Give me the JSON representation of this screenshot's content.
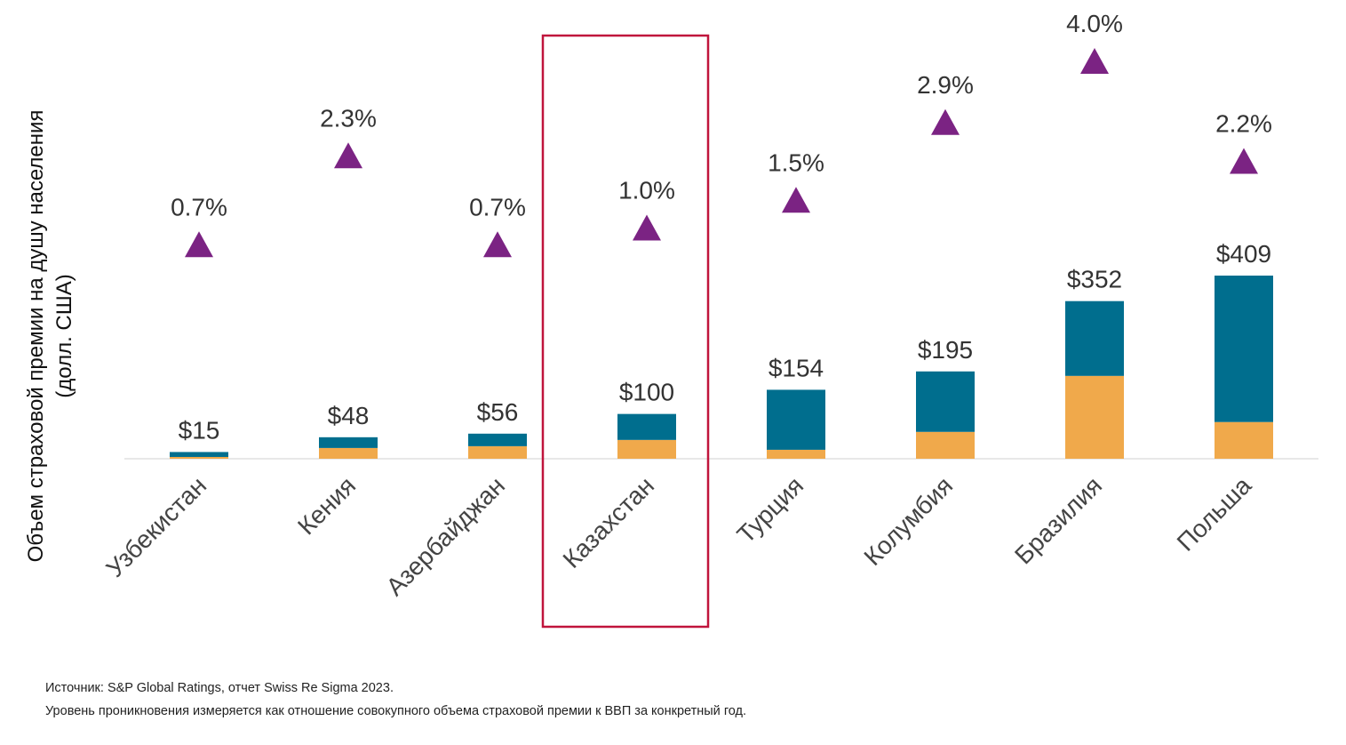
{
  "chart_data": {
    "type": "bar",
    "stacked": true,
    "ylabel_line1": "Объем страховой премии на душу населения",
    "ylabel_line2": "(долл. США)",
    "categories": [
      "Узбекистан",
      "Кения",
      "Азербайджан",
      "Казахстан",
      "Турция",
      "Колумбия",
      "Бразилия",
      "Польша"
    ],
    "totals": [
      15,
      48,
      56,
      100,
      154,
      195,
      352,
      409
    ],
    "total_labels": [
      "$15",
      "$48",
      "$56",
      "$100",
      "$154",
      "$195",
      "$352",
      "$409"
    ],
    "series": [
      {
        "name": "lower segment",
        "color": "#F0A94B",
        "values": [
          4,
          24,
          28,
          42,
          20,
          60,
          185,
          82
        ]
      },
      {
        "name": "upper segment",
        "color": "#006E8E",
        "values": [
          11,
          24,
          28,
          58,
          134,
          135,
          167,
          327
        ]
      }
    ],
    "penetration": {
      "name": "Уровень проникновения",
      "marker_color": "#7B2383",
      "values": [
        0.7,
        2.3,
        0.7,
        1.0,
        1.5,
        2.9,
        4.0,
        2.2
      ],
      "labels": [
        "0.7%",
        "2.3%",
        "0.7%",
        "1.0%",
        "1.5%",
        "2.9%",
        "4.0%",
        "2.2%"
      ]
    },
    "highlight_category": "Казахстан",
    "highlight_color": "#C0143C"
  },
  "footnotes": {
    "source": "Источник: S&P Global Ratings, отчет Swiss Re Sigma 2023.",
    "note": "Уровень проникновения измеряется как отношение совокупного объема страховой премии к ВВП за конкретный год."
  }
}
